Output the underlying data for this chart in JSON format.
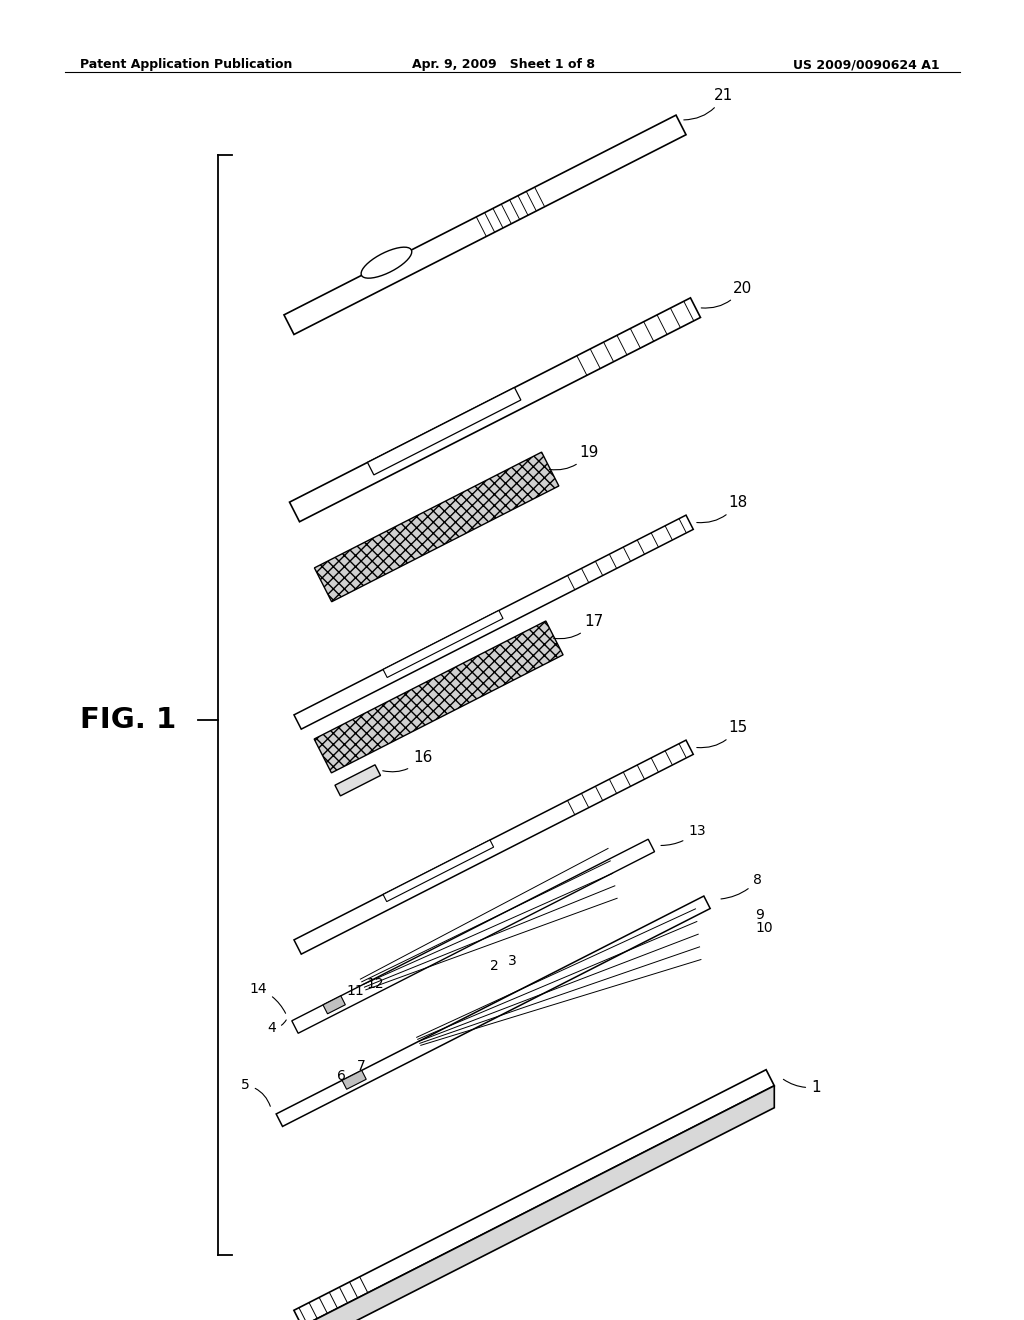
{
  "header_left": "Patent Application Publication",
  "header_center": "Apr. 9, 2009   Sheet 1 of 8",
  "header_right": "US 2009/0090624 A1",
  "figure_label": "FIG. 1",
  "background_color": "#ffffff",
  "line_color": "#000000"
}
